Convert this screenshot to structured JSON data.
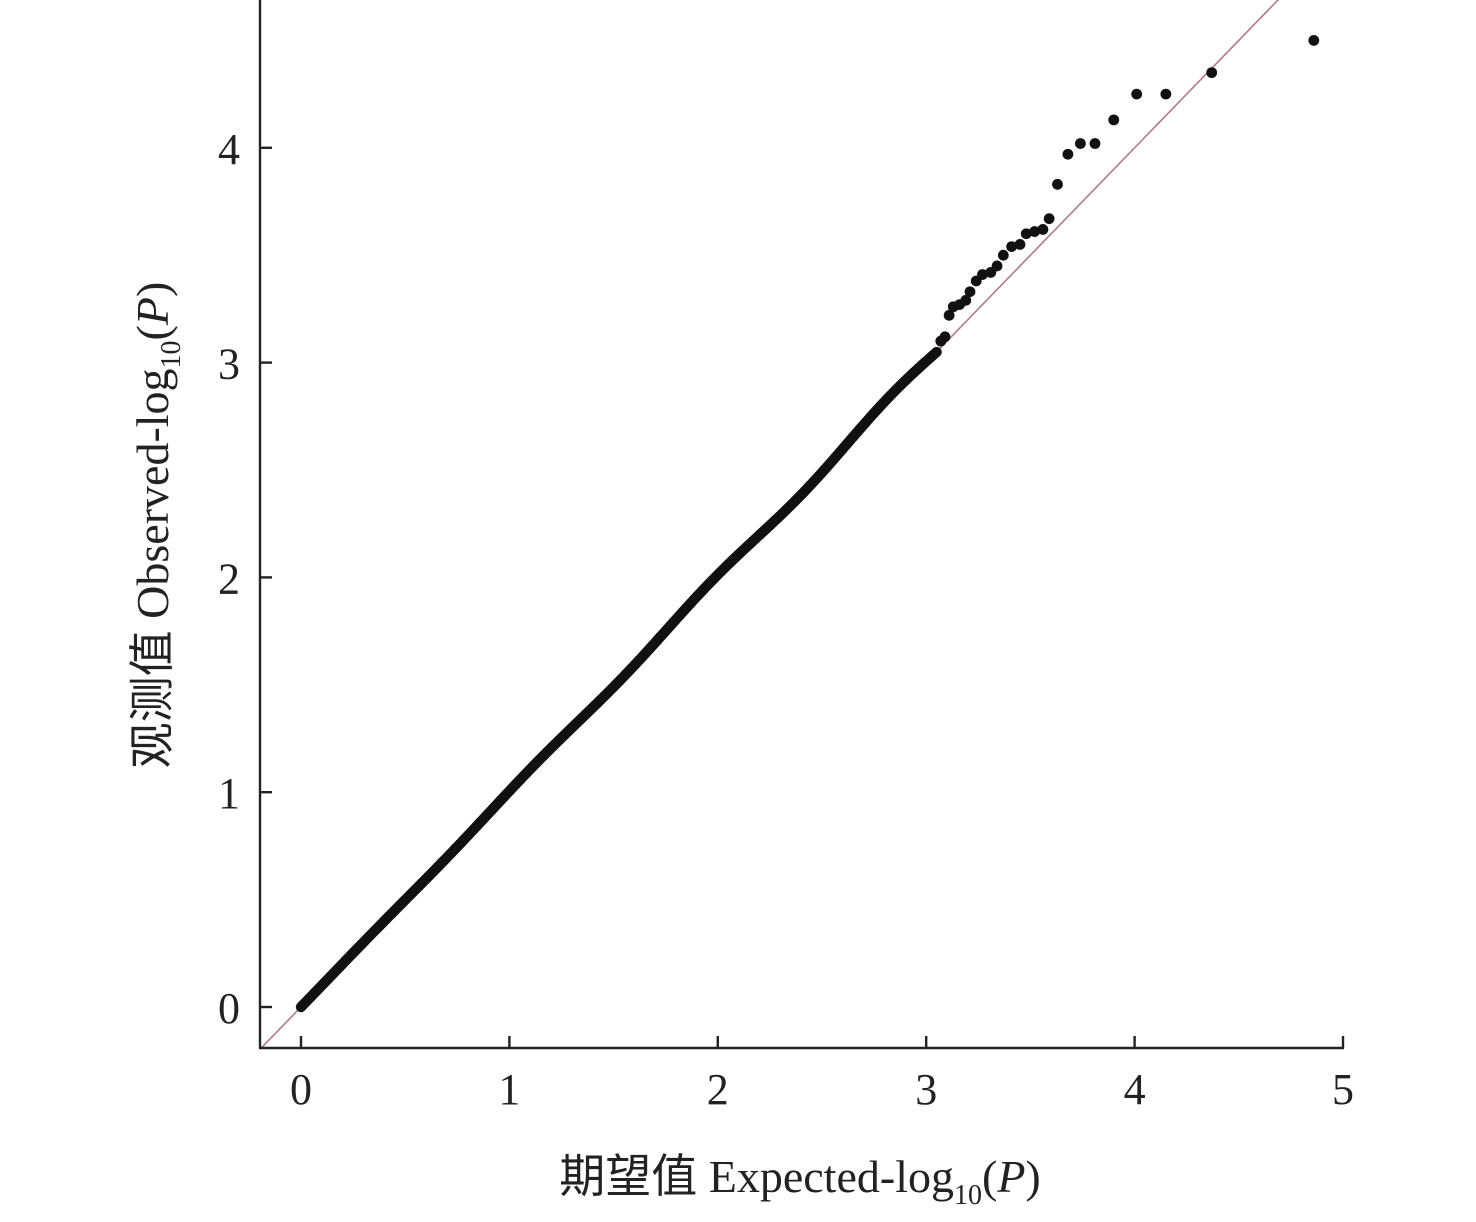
{
  "chart_data": {
    "type": "scatter",
    "title": "",
    "xlabel": {
      "prefix": "期望值 Expected-log",
      "sub": "10",
      "open": "(",
      "var": "P",
      "close": ")"
    },
    "ylabel": {
      "prefix": "观测值 Observed-log",
      "sub": "10",
      "open": "(",
      "var": "P",
      "close": ")"
    },
    "xlim": [
      -0.2,
      5
    ],
    "ylim": [
      -0.19,
      4.7
    ],
    "xticks": [
      "0",
      "1",
      "2",
      "3",
      "4",
      "5"
    ],
    "yticks": [
      "0",
      "1",
      "2",
      "3",
      "4"
    ],
    "grid": false,
    "legend": "none",
    "reference_line": {
      "slope": 1,
      "intercept": 0,
      "color": "#b07a8c"
    },
    "point_color": "#111111",
    "dense_segments": [
      {
        "x0": 0.0,
        "x1": 3.05,
        "dev_amp": 0.02,
        "dev_freq": 2.3
      }
    ],
    "series": [
      {
        "values": [
          {
            "x": 3.07,
            "y": 3.1
          },
          {
            "x": 3.09,
            "y": 3.12
          },
          {
            "x": 3.11,
            "y": 3.22
          },
          {
            "x": 3.13,
            "y": 3.26
          },
          {
            "x": 3.16,
            "y": 3.27
          },
          {
            "x": 3.19,
            "y": 3.29
          },
          {
            "x": 3.21,
            "y": 3.33
          },
          {
            "x": 3.24,
            "y": 3.38
          },
          {
            "x": 3.27,
            "y": 3.41
          },
          {
            "x": 3.31,
            "y": 3.42
          },
          {
            "x": 3.34,
            "y": 3.45
          },
          {
            "x": 3.37,
            "y": 3.5
          },
          {
            "x": 3.41,
            "y": 3.54
          },
          {
            "x": 3.45,
            "y": 3.55
          },
          {
            "x": 3.48,
            "y": 3.6
          },
          {
            "x": 3.52,
            "y": 3.61
          },
          {
            "x": 3.56,
            "y": 3.62
          },
          {
            "x": 3.59,
            "y": 3.67
          },
          {
            "x": 3.63,
            "y": 3.83
          },
          {
            "x": 3.68,
            "y": 3.97
          },
          {
            "x": 3.74,
            "y": 4.02
          },
          {
            "x": 3.81,
            "y": 4.02
          },
          {
            "x": 3.9,
            "y": 4.13
          },
          {
            "x": 4.01,
            "y": 4.25
          },
          {
            "x": 4.15,
            "y": 4.25
          },
          {
            "x": 4.37,
            "y": 4.35
          },
          {
            "x": 4.86,
            "y": 4.5
          }
        ]
      }
    ]
  }
}
